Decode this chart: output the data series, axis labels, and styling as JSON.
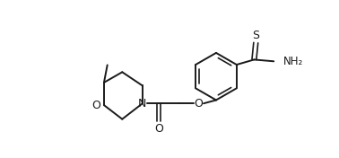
{
  "bg_color": "#ffffff",
  "line_color": "#1a1a1a",
  "line_width": 1.4,
  "font_size": 8.5,
  "figsize": [
    3.78,
    1.76
  ],
  "dpi": 100,
  "xlim": [
    0,
    10
  ],
  "ylim": [
    0,
    4.65
  ]
}
